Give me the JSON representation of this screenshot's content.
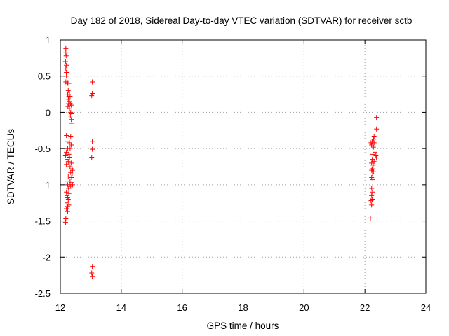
{
  "chart_data": {
    "type": "scatter",
    "title": "Day 182 of 2018, Sidereal Day-to-day VTEC variation (SDTVAR) for receiver sctb",
    "xlabel": "GPS time / hours",
    "ylabel": "SDTVAR / TECUs",
    "xlim": [
      12,
      24
    ],
    "ylim": [
      -2.5,
      1
    ],
    "x_ticks": [
      12,
      14,
      16,
      18,
      20,
      22,
      24
    ],
    "y_ticks": [
      1,
      0.5,
      0,
      -0.5,
      -1,
      -1.5,
      -2,
      -2.5
    ],
    "x_tick_labels": [
      "12",
      "14",
      "16",
      "18",
      "20",
      "22",
      "24"
    ],
    "y_tick_labels": [
      "1",
      "0.5",
      "0",
      "-0.5",
      "-1",
      "-1.5",
      "-2",
      "-2.5"
    ],
    "grid": true,
    "marker": "+",
    "color": "#ff0000",
    "series": [
      {
        "points": [
          [
            12.18,
            0.88
          ],
          [
            12.18,
            0.83
          ],
          [
            12.19,
            0.78
          ],
          [
            12.17,
            0.7
          ],
          [
            12.2,
            0.65
          ],
          [
            12.18,
            0.6
          ],
          [
            12.2,
            0.55
          ],
          [
            12.22,
            0.55
          ],
          [
            12.2,
            0.5
          ],
          [
            12.18,
            0.42
          ],
          [
            12.24,
            0.4
          ],
          [
            12.28,
            0.4
          ],
          [
            12.26,
            0.3
          ],
          [
            12.3,
            0.28
          ],
          [
            12.24,
            0.25
          ],
          [
            12.28,
            0.22
          ],
          [
            12.32,
            0.22
          ],
          [
            12.26,
            0.18
          ],
          [
            12.3,
            0.15
          ],
          [
            12.27,
            0.12
          ],
          [
            12.33,
            0.12
          ],
          [
            12.36,
            0.1
          ],
          [
            12.25,
            0.08
          ],
          [
            12.3,
            0.05
          ],
          [
            12.34,
            0.0
          ],
          [
            12.38,
            -0.02
          ],
          [
            12.33,
            -0.05
          ],
          [
            12.36,
            -0.1
          ],
          [
            12.38,
            -0.15
          ],
          [
            12.2,
            -0.32
          ],
          [
            12.34,
            -0.33
          ],
          [
            12.22,
            -0.4
          ],
          [
            12.3,
            -0.42
          ],
          [
            12.36,
            -0.45
          ],
          [
            12.24,
            -0.5
          ],
          [
            12.32,
            -0.5
          ],
          [
            12.2,
            -0.55
          ],
          [
            12.28,
            -0.58
          ],
          [
            12.17,
            -0.6
          ],
          [
            12.3,
            -0.62
          ],
          [
            12.22,
            -0.65
          ],
          [
            12.26,
            -0.68
          ],
          [
            12.36,
            -0.7
          ],
          [
            12.2,
            -0.72
          ],
          [
            12.32,
            -0.75
          ],
          [
            12.38,
            -0.78
          ],
          [
            12.4,
            -0.8
          ],
          [
            12.34,
            -0.83
          ],
          [
            12.39,
            -0.85
          ],
          [
            12.26,
            -0.88
          ],
          [
            12.37,
            -0.9
          ],
          [
            12.22,
            -0.95
          ],
          [
            12.32,
            -0.95
          ],
          [
            12.38,
            -0.97
          ],
          [
            12.24,
            -1.0
          ],
          [
            12.3,
            -1.0
          ],
          [
            12.34,
            -1.02
          ],
          [
            12.4,
            -1.0
          ],
          [
            12.27,
            -1.05
          ],
          [
            12.2,
            -1.1
          ],
          [
            12.28,
            -1.12
          ],
          [
            12.22,
            -1.15
          ],
          [
            12.24,
            -1.18
          ],
          [
            12.26,
            -1.2
          ],
          [
            12.22,
            -1.25
          ],
          [
            12.28,
            -1.28
          ],
          [
            12.24,
            -1.3
          ],
          [
            12.2,
            -1.33
          ],
          [
            12.24,
            -1.37
          ],
          [
            12.18,
            -1.47
          ],
          [
            12.17,
            -1.52
          ],
          [
            13.05,
            0.42
          ],
          [
            13.05,
            0.26
          ],
          [
            13.03,
            0.23
          ],
          [
            13.05,
            -0.4
          ],
          [
            13.05,
            -0.51
          ],
          [
            13.03,
            -0.62
          ],
          [
            13.05,
            -2.13
          ],
          [
            13.03,
            -2.22
          ],
          [
            13.05,
            -2.27
          ],
          [
            22.38,
            -0.07
          ],
          [
            22.38,
            -0.23
          ],
          [
            22.3,
            -0.33
          ],
          [
            22.28,
            -0.37
          ],
          [
            22.24,
            -0.4
          ],
          [
            22.2,
            -0.42
          ],
          [
            22.3,
            -0.42
          ],
          [
            22.22,
            -0.45
          ],
          [
            22.28,
            -0.48
          ],
          [
            22.33,
            -0.55
          ],
          [
            22.26,
            -0.58
          ],
          [
            22.36,
            -0.6
          ],
          [
            22.38,
            -0.63
          ],
          [
            22.24,
            -0.65
          ],
          [
            22.3,
            -0.68
          ],
          [
            22.22,
            -0.7
          ],
          [
            22.27,
            -0.73
          ],
          [
            22.24,
            -0.78
          ],
          [
            22.22,
            -0.8
          ],
          [
            22.28,
            -0.82
          ],
          [
            22.25,
            -0.85
          ],
          [
            22.22,
            -0.9
          ],
          [
            22.26,
            -0.93
          ],
          [
            22.22,
            -1.05
          ],
          [
            22.25,
            -1.1
          ],
          [
            22.22,
            -1.15
          ],
          [
            22.24,
            -1.2
          ],
          [
            22.2,
            -1.22
          ],
          [
            22.22,
            -1.28
          ],
          [
            22.18,
            -1.46
          ]
        ]
      }
    ]
  }
}
